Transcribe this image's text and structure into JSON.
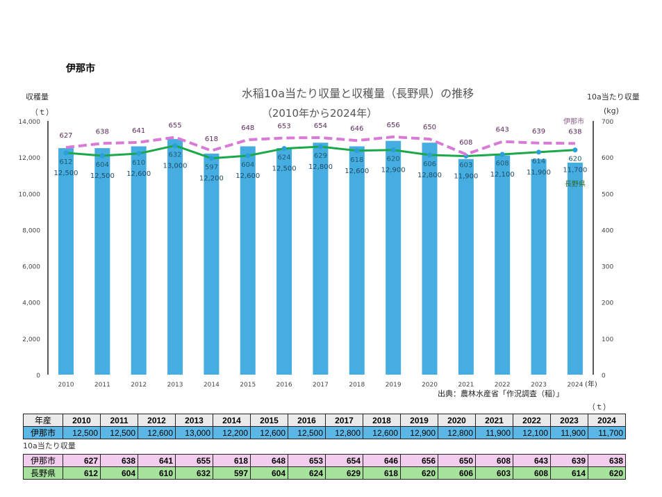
{
  "city_heading": "伊那市",
  "chart_data": {
    "type": "bar+line",
    "title": "水稲10a当たり収量と収穫量（長野県）の推移",
    "subtitle": "（2010年から2024年）",
    "y_left_label": "収穫量",
    "y_left_unit": "（ｔ）",
    "y_right_label": "10a当たり収量",
    "y_right_unit": "(kg)",
    "x_unit": "(年)",
    "source": "出典：農林水産省「作況調査（稲）」",
    "ylim_left": [
      0,
      14000
    ],
    "ylim_right": [
      0,
      700
    ],
    "left_ticks": [
      "0",
      "2,000",
      "4,000",
      "6,000",
      "8,000",
      "10,000",
      "12,000",
      "14,000"
    ],
    "right_ticks": [
      "0",
      "100",
      "200",
      "300",
      "400",
      "500",
      "600",
      "700"
    ],
    "categories": [
      "2010",
      "2011",
      "2012",
      "2013",
      "2014",
      "2015",
      "2016",
      "2017",
      "2018",
      "2019",
      "2020",
      "2021",
      "2022",
      "2023",
      "2024"
    ],
    "series": [
      {
        "name": "伊那市",
        "kind": "bar",
        "axis": "left",
        "color": "#45ade0",
        "values": [
          12500,
          12500,
          12600,
          13000,
          12200,
          12600,
          12500,
          12800,
          12600,
          12900,
          12800,
          11900,
          12100,
          11900,
          11700
        ]
      },
      {
        "name": "伊那市",
        "kind": "line-dashed",
        "axis": "right",
        "color": "#d97ad6",
        "values": [
          627,
          638,
          641,
          655,
          618,
          648,
          653,
          654,
          646,
          656,
          650,
          608,
          643,
          639,
          638
        ]
      },
      {
        "name": "長野県",
        "kind": "line",
        "axis": "right",
        "color": "#1aa84a",
        "values": [
          612,
          604,
          610,
          632,
          597,
          604,
          624,
          629,
          618,
          620,
          606,
          603,
          608,
          614,
          620
        ]
      }
    ]
  },
  "table_harvest": {
    "unit": "（ｔ）",
    "header_label": "年産",
    "years": [
      "2010",
      "2011",
      "2012",
      "2013",
      "2014",
      "2015",
      "2016",
      "2017",
      "2018",
      "2019",
      "2020",
      "2021",
      "2022",
      "2023",
      "2024"
    ],
    "row_label": "伊那市",
    "values": [
      "12,500",
      "12,500",
      "12,600",
      "13,000",
      "12,200",
      "12,600",
      "12,500",
      "12,800",
      "12,600",
      "12,900",
      "12,800",
      "11,900",
      "12,100",
      "11,900",
      "11,700"
    ]
  },
  "table_yield": {
    "caption": "10a当たり収量",
    "rows": [
      {
        "label": "伊那市",
        "values": [
          "627",
          "638",
          "641",
          "655",
          "618",
          "648",
          "653",
          "654",
          "646",
          "656",
          "650",
          "608",
          "643",
          "639",
          "638"
        ]
      },
      {
        "label": "長野県",
        "values": [
          "612",
          "604",
          "610",
          "632",
          "597",
          "604",
          "624",
          "629",
          "618",
          "620",
          "606",
          "603",
          "608",
          "614",
          "620"
        ]
      }
    ]
  }
}
